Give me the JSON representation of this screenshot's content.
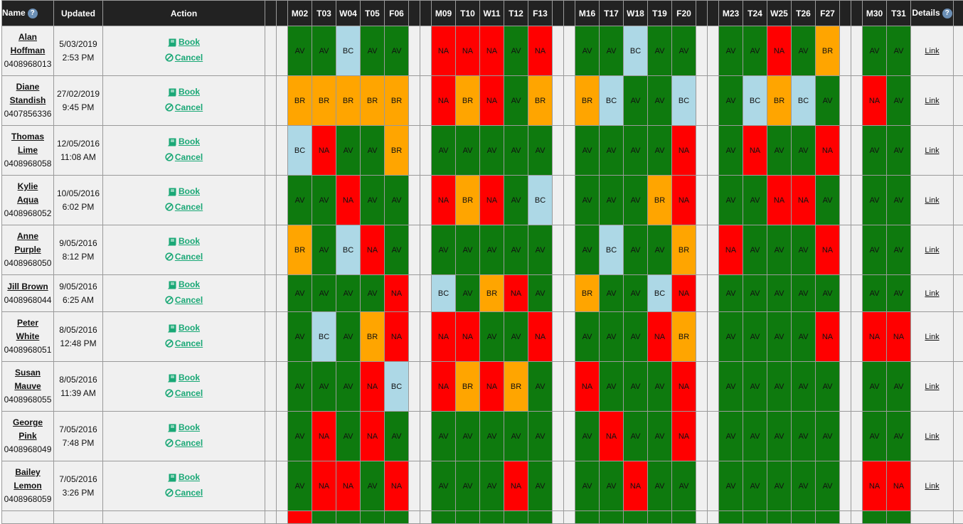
{
  "headers": {
    "name": "Name",
    "updated": "Updated",
    "action": "Action",
    "details": "Details",
    "days": [
      "M02",
      "T03",
      "W04",
      "T05",
      "F06",
      "M09",
      "T10",
      "W11",
      "T12",
      "F13",
      "M16",
      "T17",
      "W18",
      "T19",
      "F20",
      "M23",
      "T24",
      "W25",
      "T26",
      "F27",
      "M30",
      "T31"
    ]
  },
  "actions": {
    "book": "Book",
    "cancel": "Cancel",
    "link": "Link"
  },
  "status_colors": {
    "AV": "#0e7a0e",
    "NA": "#ff0000",
    "BC": "#add8e6",
    "BR": "#ffa500"
  },
  "rows": [
    {
      "first": "Alan",
      "last": "Hoffman",
      "phone": "0408968013",
      "date": "5/03/2019",
      "time": "2:53 PM",
      "statuses": [
        "AV",
        "AV",
        "BC",
        "AV",
        "AV",
        "NA",
        "NA",
        "NA",
        "AV",
        "NA",
        "AV",
        "AV",
        "BC",
        "AV",
        "AV",
        "AV",
        "AV",
        "NA",
        "AV",
        "BR",
        "AV",
        "AV"
      ]
    },
    {
      "first": "Diane",
      "last": "Standish",
      "phone": "0407856336",
      "date": "27/02/2019",
      "time": "9:45 PM",
      "statuses": [
        "BR",
        "BR",
        "BR",
        "BR",
        "BR",
        "NA",
        "BR",
        "NA",
        "AV",
        "BR",
        "BR",
        "BC",
        "AV",
        "AV",
        "BC",
        "AV",
        "BC",
        "BR",
        "BC",
        "AV",
        "NA",
        "AV"
      ]
    },
    {
      "first": "Thomas",
      "last": "Lime",
      "phone": "0408968058",
      "date": "12/05/2016",
      "time": "11:08 AM",
      "statuses": [
        "BC",
        "NA",
        "AV",
        "AV",
        "BR",
        "AV",
        "AV",
        "AV",
        "AV",
        "AV",
        "AV",
        "AV",
        "AV",
        "AV",
        "NA",
        "AV",
        "NA",
        "AV",
        "AV",
        "NA",
        "AV",
        "AV"
      ]
    },
    {
      "first": "Kylie",
      "last": "Aqua",
      "phone": "0408968052",
      "date": "10/05/2016",
      "time": "6:02 PM",
      "statuses": [
        "AV",
        "AV",
        "NA",
        "AV",
        "AV",
        "NA",
        "BR",
        "NA",
        "AV",
        "BC",
        "AV",
        "AV",
        "AV",
        "BR",
        "NA",
        "AV",
        "AV",
        "NA",
        "NA",
        "AV",
        "AV",
        "AV"
      ]
    },
    {
      "first": "Anne",
      "last": "Purple",
      "phone": "0408968050",
      "date": "9/05/2016",
      "time": "8:12 PM",
      "statuses": [
        "BR",
        "AV",
        "BC",
        "NA",
        "AV",
        "AV",
        "AV",
        "AV",
        "AV",
        "AV",
        "AV",
        "BC",
        "AV",
        "AV",
        "BR",
        "NA",
        "AV",
        "AV",
        "AV",
        "NA",
        "AV",
        "AV"
      ]
    },
    {
      "first": "Jill Brown",
      "last": "",
      "phone": "0408968044",
      "date": "9/05/2016",
      "time": "6:25 AM",
      "statuses": [
        "AV",
        "AV",
        "AV",
        "AV",
        "NA",
        "BC",
        "AV",
        "BR",
        "NA",
        "AV",
        "BR",
        "AV",
        "AV",
        "BC",
        "NA",
        "AV",
        "AV",
        "AV",
        "AV",
        "AV",
        "AV",
        "AV"
      ]
    },
    {
      "first": "Peter",
      "last": "White",
      "phone": "0408968051",
      "date": "8/05/2016",
      "time": "12:48 PM",
      "statuses": [
        "AV",
        "BC",
        "AV",
        "BR",
        "NA",
        "NA",
        "NA",
        "AV",
        "AV",
        "NA",
        "AV",
        "AV",
        "AV",
        "NA",
        "BR",
        "AV",
        "AV",
        "AV",
        "AV",
        "NA",
        "NA",
        "NA"
      ]
    },
    {
      "first": "Susan",
      "last": "Mauve",
      "phone": "0408968055",
      "date": "8/05/2016",
      "time": "11:39 AM",
      "statuses": [
        "AV",
        "AV",
        "AV",
        "NA",
        "BC",
        "NA",
        "BR",
        "NA",
        "BR",
        "AV",
        "NA",
        "AV",
        "AV",
        "AV",
        "NA",
        "AV",
        "AV",
        "AV",
        "AV",
        "AV",
        "AV",
        "AV"
      ]
    },
    {
      "first": "George",
      "last": "Pink",
      "phone": "0408968049",
      "date": "7/05/2016",
      "time": "7:48 PM",
      "statuses": [
        "AV",
        "NA",
        "AV",
        "NA",
        "AV",
        "AV",
        "AV",
        "AV",
        "AV",
        "AV",
        "AV",
        "NA",
        "AV",
        "AV",
        "NA",
        "AV",
        "AV",
        "AV",
        "AV",
        "AV",
        "AV",
        "AV"
      ]
    },
    {
      "first": "Bailey",
      "last": "Lemon",
      "phone": "0408968059",
      "date": "7/05/2016",
      "time": "3:26 PM",
      "statuses": [
        "AV",
        "NA",
        "NA",
        "AV",
        "NA",
        "AV",
        "AV",
        "AV",
        "NA",
        "AV",
        "AV",
        "AV",
        "NA",
        "AV",
        "AV",
        "AV",
        "AV",
        "AV",
        "AV",
        "AV",
        "NA",
        "NA"
      ]
    },
    {
      "first": "",
      "last": "",
      "phone": "",
      "date": "",
      "time": "",
      "statuses": [
        "NA",
        "AV",
        "AV",
        "AV",
        "AV",
        "AV",
        "AV",
        "AV",
        "AV",
        "AV",
        "AV",
        "AV",
        "AV",
        "AV",
        "AV",
        "AV",
        "AV",
        "AV",
        "AV",
        "AV",
        "AV",
        "AV"
      ]
    }
  ]
}
